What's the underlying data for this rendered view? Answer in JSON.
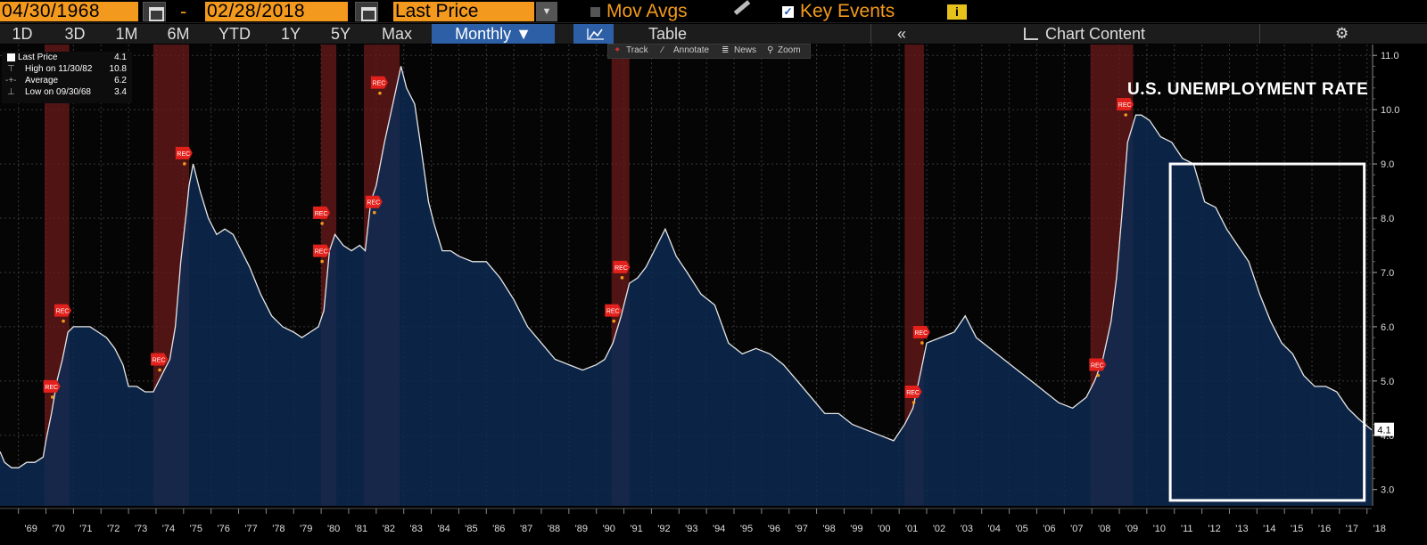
{
  "toolbar": {
    "start_date": "04/30/1968",
    "separator": "-",
    "end_date": "02/28/2018",
    "price_field": "Last Price",
    "mov_avgs_label": "Mov Avgs",
    "key_events_label": "Key Events",
    "key_events_checked": true,
    "info_label": "i"
  },
  "timeframes": [
    "1D",
    "3D",
    "1M",
    "6M",
    "YTD",
    "1Y",
    "5Y",
    "Max"
  ],
  "period_selector": "Monthly ▼",
  "view": {
    "table_label": "Table",
    "chart_content_label": "Chart Content",
    "collapse_label": "«",
    "settings_label": "⚙"
  },
  "mini_toolbar": {
    "track": "Track",
    "annotate": "Annotate",
    "news": "News",
    "zoom": "Zoom"
  },
  "legend": {
    "last_price_label": "Last Price",
    "last_price_value": "4.1",
    "high_label": "High on 11/30/82",
    "high_value": "10.8",
    "average_label": "Average",
    "average_value": "6.2",
    "low_label": "Low on 09/30/68",
    "low_value": "3.4"
  },
  "colors": {
    "accent": "#f39a1e",
    "area_fill": "#0d2a52",
    "line": "#e6e6e6",
    "recession": "#6b1a1a",
    "rec_marker": "#e3211c",
    "highlight_box": "#ffffff"
  },
  "chart_data": {
    "type": "area",
    "title": "U.S. UNEMPLOYMENT RATE",
    "xlabel": "",
    "ylabel": "",
    "xlim": [
      1968.33,
      2018.17
    ],
    "ylim": [
      2.7,
      11.2
    ],
    "x_tick_labels": [
      "'69",
      "'70",
      "'71",
      "'72",
      "'73",
      "'74",
      "'75",
      "'76",
      "'77",
      "'78",
      "'79",
      "'80",
      "'81",
      "'82",
      "'83",
      "'84",
      "'85",
      "'86",
      "'87",
      "'88",
      "'89",
      "'90",
      "'91",
      "'92",
      "'93",
      "'94",
      "'95",
      "'96",
      "'97",
      "'98",
      "'99",
      "'00",
      "'01",
      "'02",
      "'03",
      "'04",
      "'05",
      "'06",
      "'07",
      "'08",
      "'09",
      "'10",
      "'11",
      "'12",
      "'13",
      "'14",
      "'15",
      "'16",
      "'17",
      "'18"
    ],
    "y_ticks": [
      3.0,
      4.0,
      5.0,
      6.0,
      7.0,
      8.0,
      9.0,
      10.0,
      11.0
    ],
    "y_tick_labels": [
      "3.0",
      "4.0",
      "5.0",
      "6.0",
      "7.0",
      "8.0",
      "9.0",
      "10.0",
      "11.0"
    ],
    "grid": true,
    "series": [
      {
        "x": [
          1968.33,
          1968.5,
          1968.75,
          1969.0,
          1969.3,
          1969.6,
          1969.9,
          1970.0,
          1970.2,
          1970.4,
          1970.6,
          1970.8,
          1971.0,
          1971.3,
          1971.6,
          1971.9,
          1972.2,
          1972.5,
          1972.8,
          1973.0,
          1973.3,
          1973.6,
          1973.9,
          1974.2,
          1974.5,
          1974.7,
          1974.9,
          1975.1,
          1975.2,
          1975.35,
          1975.6,
          1975.9,
          1976.2,
          1976.5,
          1976.8,
          1977.0,
          1977.4,
          1977.8,
          1978.2,
          1978.6,
          1979.0,
          1979.3,
          1979.6,
          1979.9,
          1980.1,
          1980.3,
          1980.5,
          1980.8,
          1981.1,
          1981.4,
          1981.6,
          1981.8,
          1982.0,
          1982.3,
          1982.6,
          1982.9,
          1983.1,
          1983.4,
          1983.6,
          1983.9,
          1984.1,
          1984.4,
          1984.7,
          1985.0,
          1985.5,
          1986.0,
          1986.5,
          1987.0,
          1987.5,
          1988.0,
          1988.5,
          1989.0,
          1989.5,
          1990.0,
          1990.3,
          1990.6,
          1990.9,
          1991.2,
          1991.5,
          1991.8,
          1992.2,
          1992.5,
          1992.9,
          1993.3,
          1993.8,
          1994.3,
          1994.8,
          1995.3,
          1995.8,
          1996.3,
          1996.8,
          1997.3,
          1997.8,
          1998.3,
          1998.8,
          1999.3,
          1999.8,
          2000.3,
          2000.8,
          2001.2,
          2001.5,
          2001.8,
          2002.0,
          2002.5,
          2003.0,
          2003.4,
          2003.8,
          2004.3,
          2004.8,
          2005.3,
          2005.8,
          2006.3,
          2006.8,
          2007.3,
          2007.8,
          2008.1,
          2008.4,
          2008.7,
          2008.9,
          2009.1,
          2009.3,
          2009.6,
          2009.8,
          2010.1,
          2010.5,
          2010.9,
          2011.3,
          2011.7,
          2012.1,
          2012.5,
          2012.9,
          2013.3,
          2013.7,
          2014.1,
          2014.5,
          2014.9,
          2015.3,
          2015.7,
          2016.1,
          2016.5,
          2016.9,
          2017.3,
          2017.7,
          2018.17
        ],
        "y": [
          3.7,
          3.5,
          3.4,
          3.4,
          3.5,
          3.5,
          3.6,
          3.9,
          4.4,
          5.0,
          5.4,
          5.9,
          6.0,
          6.0,
          6.0,
          5.9,
          5.8,
          5.6,
          5.3,
          4.9,
          4.9,
          4.8,
          4.8,
          5.1,
          5.4,
          6.0,
          7.2,
          8.1,
          8.6,
          9.0,
          8.5,
          8.0,
          7.7,
          7.8,
          7.7,
          7.5,
          7.1,
          6.6,
          6.2,
          6.0,
          5.9,
          5.8,
          5.9,
          6.0,
          6.3,
          7.4,
          7.7,
          7.5,
          7.4,
          7.5,
          7.4,
          8.3,
          8.6,
          9.4,
          10.1,
          10.8,
          10.4,
          10.1,
          9.4,
          8.3,
          7.9,
          7.4,
          7.4,
          7.3,
          7.2,
          7.2,
          6.9,
          6.5,
          6.0,
          5.7,
          5.4,
          5.3,
          5.2,
          5.3,
          5.4,
          5.7,
          6.2,
          6.8,
          6.9,
          7.1,
          7.5,
          7.8,
          7.3,
          7.0,
          6.6,
          6.4,
          5.7,
          5.5,
          5.6,
          5.5,
          5.3,
          5.0,
          4.7,
          4.4,
          4.4,
          4.2,
          4.1,
          4.0,
          3.9,
          4.2,
          4.5,
          5.2,
          5.7,
          5.8,
          5.9,
          6.2,
          5.8,
          5.6,
          5.4,
          5.2,
          5.0,
          4.8,
          4.6,
          4.5,
          4.7,
          5.0,
          5.4,
          6.1,
          6.9,
          8.1,
          9.4,
          9.9,
          9.9,
          9.8,
          9.5,
          9.4,
          9.1,
          9.0,
          8.3,
          8.2,
          7.8,
          7.5,
          7.2,
          6.6,
          6.1,
          5.7,
          5.5,
          5.1,
          4.9,
          4.9,
          4.8,
          4.5,
          4.3,
          4.1
        ]
      }
    ],
    "recessions": [
      [
        1969.95,
        1970.85
      ],
      [
        1973.9,
        1975.2
      ],
      [
        1980.0,
        1980.55
      ],
      [
        1981.55,
        1982.85
      ],
      [
        1990.55,
        1991.2
      ],
      [
        2001.2,
        2001.9
      ],
      [
        2007.95,
        2009.5
      ]
    ],
    "key_event_markers": [
      {
        "x": 1970.2,
        "y": 4.9,
        "label": "REC"
      },
      {
        "x": 1970.6,
        "y": 6.3,
        "label": "REC"
      },
      {
        "x": 1974.1,
        "y": 5.4,
        "label": "REC"
      },
      {
        "x": 1975.0,
        "y": 9.2,
        "label": "REC"
      },
      {
        "x": 1980.0,
        "y": 8.1,
        "label": "REC"
      },
      {
        "x": 1980.0,
        "y": 7.4,
        "label": "REC"
      },
      {
        "x": 1981.9,
        "y": 8.3,
        "label": "REC"
      },
      {
        "x": 1982.1,
        "y": 10.5,
        "label": "REC"
      },
      {
        "x": 1990.6,
        "y": 6.3,
        "label": "REC"
      },
      {
        "x": 1990.9,
        "y": 7.1,
        "label": "REC"
      },
      {
        "x": 2001.5,
        "y": 4.8,
        "label": "REC"
      },
      {
        "x": 2001.8,
        "y": 5.9,
        "label": "REC"
      },
      {
        "x": 2008.2,
        "y": 5.3,
        "label": "REC"
      },
      {
        "x": 2009.2,
        "y": 10.1,
        "label": "REC"
      }
    ],
    "highlight_box": {
      "x": [
        2010.85,
        2017.9
      ],
      "y": [
        2.8,
        9.0
      ]
    },
    "last_value_label": "4.1"
  }
}
